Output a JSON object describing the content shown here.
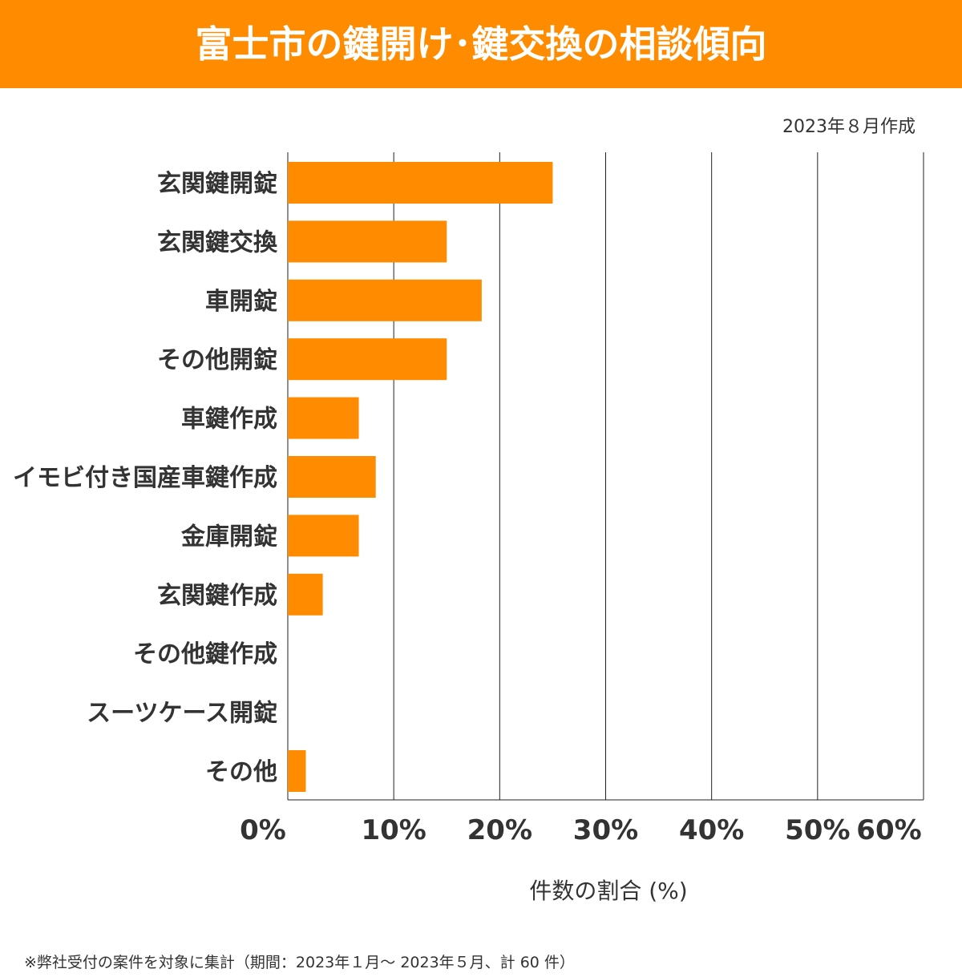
{
  "header": {
    "title": "富士市の鍵開け･鍵交換の相談傾向"
  },
  "date_label": "2023年８月作成",
  "footnote": "※弊社受付の案件を対象に集計（期間：2023年１月～ 2023年５月、計 60 件）",
  "colors": {
    "bar": "#ff8c00",
    "header": "#ff8c00"
  },
  "chart_data": {
    "type": "bar",
    "orientation": "horizontal",
    "categories": [
      "玄関鍵開錠",
      "玄関鍵交換",
      "車開錠",
      "その他開錠",
      "車鍵作成",
      "イモビ付き国産車鍵作成",
      "金庫開錠",
      "玄関鍵作成",
      "その他鍵作成",
      "スーツケース開錠",
      "その他"
    ],
    "values": [
      25.0,
      15.0,
      18.3,
      15.0,
      6.7,
      8.3,
      6.7,
      3.3,
      0,
      0,
      1.7
    ],
    "xlabel": "件数の割合 (%)",
    "xlim": [
      0,
      60
    ],
    "xticks": [
      "0%",
      "10%",
      "20%",
      "30%",
      "40%",
      "50%",
      "60%"
    ],
    "grid": "vertical"
  }
}
